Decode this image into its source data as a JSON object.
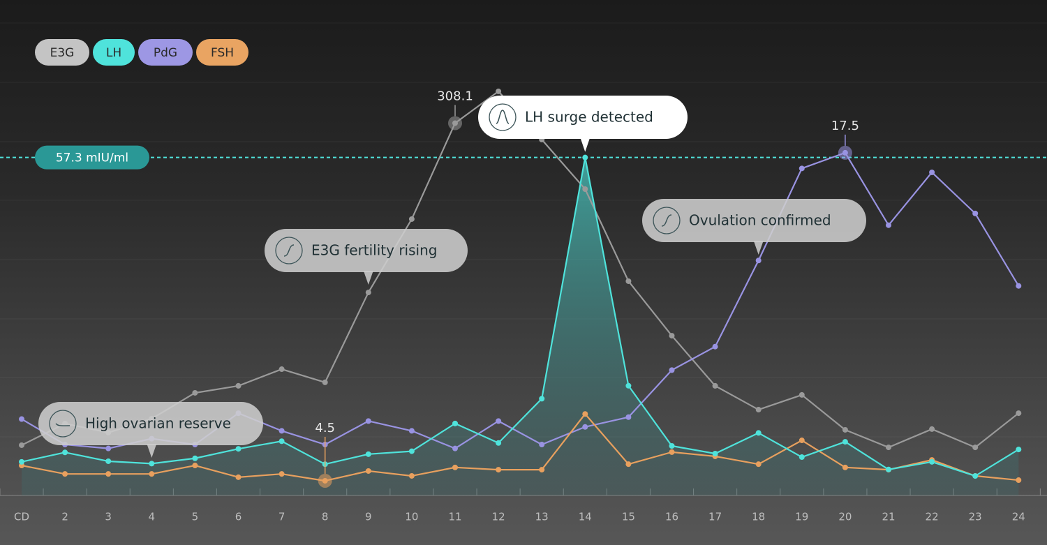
{
  "chart_data": {
    "type": "line",
    "categories": [
      "CD",
      "2",
      "3",
      "4",
      "5",
      "6",
      "7",
      "8",
      "9",
      "10",
      "11",
      "12",
      "13",
      "14",
      "15",
      "16",
      "17",
      "18",
      "19",
      "20",
      "21",
      "22",
      "23",
      "24"
    ],
    "series": [
      {
        "name": "E3G",
        "color": "#9a9a9a",
        "legend_color": "#c4c4c4",
        "ylim": [
          0,
          410
        ],
        "values": [
          41.6,
          59.5,
          52,
          63.5,
          84.9,
          90.7,
          104.5,
          93.6,
          168,
          228.7,
          308.1,
          334.4,
          294.5,
          253.5,
          177.3,
          132.2,
          90.7,
          71,
          83.2,
          54.3,
          39.8,
          54.9,
          39.8,
          68.1
        ],
        "value_labels": [
          null,
          null,
          null,
          null,
          null,
          null,
          null,
          null,
          null,
          null,
          "308.1",
          null,
          null,
          null,
          null,
          null,
          null,
          null,
          null,
          null,
          null,
          null,
          null,
          null
        ]
      },
      {
        "name": "LH",
        "color": "#4fe3db",
        "legend_color": "#4fe3db",
        "ylim": [
          0,
          84
        ],
        "area": true,
        "values": [
          5.7,
          7.3,
          5.8,
          5.4,
          6.3,
          7.9,
          9.2,
          5.3,
          7.0,
          7.5,
          12.2,
          8.9,
          16.4,
          57.3,
          18.6,
          8.4,
          7.1,
          10.6,
          6.5,
          9.1,
          4.4,
          5.7,
          3.3,
          7.8
        ]
      },
      {
        "name": "PdG",
        "color": "#9993e2",
        "legend_color": "#9d97e4",
        "ylim": [
          0,
          25.3
        ],
        "values": [
          3.9,
          2.6,
          2.4,
          2.9,
          2.6,
          4.2,
          3.3,
          2.6,
          3.8,
          3.3,
          2.4,
          3.8,
          2.6,
          3.5,
          4.0,
          6.4,
          7.6,
          12.0,
          16.7,
          17.5,
          13.8,
          16.5,
          14.4,
          10.7
        ],
        "value_labels": [
          null,
          null,
          null,
          null,
          null,
          null,
          null,
          null,
          null,
          null,
          null,
          null,
          null,
          null,
          null,
          null,
          null,
          null,
          null,
          "17.5",
          null,
          null,
          null,
          null
        ]
      },
      {
        "name": "FSH",
        "color": "#e8a05e",
        "legend_color": "#e9a462",
        "ylim": [
          0,
          152
        ],
        "values": [
          9.2,
          6.6,
          6.6,
          6.6,
          9.2,
          5.6,
          6.6,
          4.5,
          7.5,
          6.0,
          8.6,
          7.9,
          7.9,
          25.0,
          9.6,
          13.3,
          12.0,
          9.6,
          16.9,
          8.6,
          7.9,
          10.9,
          6.0,
          4.7
        ],
        "value_labels": [
          null,
          null,
          null,
          null,
          null,
          null,
          null,
          "4.5",
          null,
          null,
          null,
          null,
          null,
          null,
          null,
          null,
          null,
          null,
          null,
          null,
          null,
          null,
          null,
          null
        ]
      }
    ],
    "reference_line": {
      "series": "LH",
      "value": 57.3,
      "label": "57.3 mIU/ml"
    },
    "annotations": [
      {
        "text": "LH surge detected",
        "series": "LH",
        "x": "14"
      },
      {
        "text": "E3G fertility rising",
        "series": "E3G",
        "x": "9"
      },
      {
        "text": "Ovulation confirmed",
        "series": "PdG",
        "x": "18"
      },
      {
        "text": "High ovarian reserve",
        "series": "LH",
        "x": "4"
      }
    ]
  }
}
